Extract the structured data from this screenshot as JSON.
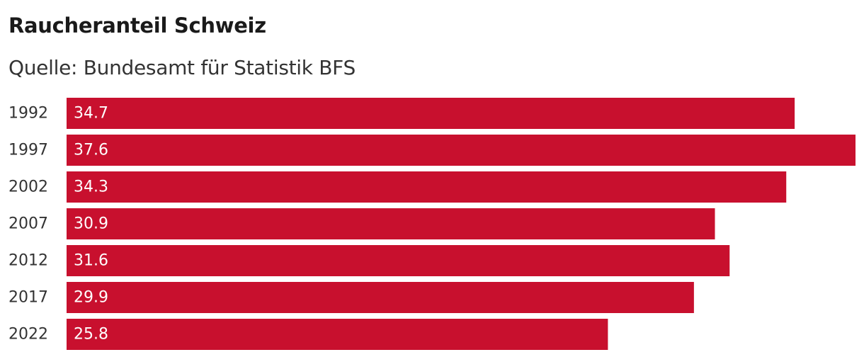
{
  "chart_data": {
    "type": "bar",
    "orientation": "horizontal",
    "title": "Raucheranteil Schweiz",
    "subtitle": "Quelle: Bundesamt für Statistik BFS",
    "categories": [
      "1992",
      "1997",
      "2002",
      "2007",
      "2012",
      "2017",
      "2022"
    ],
    "values": [
      34.7,
      37.6,
      34.3,
      30.9,
      31.6,
      29.9,
      25.8
    ],
    "value_labels": [
      "34.7",
      "37.6",
      "34.3",
      "30.9",
      "31.6",
      "29.9",
      "25.8"
    ],
    "xlim": [
      0,
      37.6
    ],
    "grid": false,
    "legend": "none",
    "bar_color": "#c8102e",
    "label_color": "#ffffff"
  }
}
